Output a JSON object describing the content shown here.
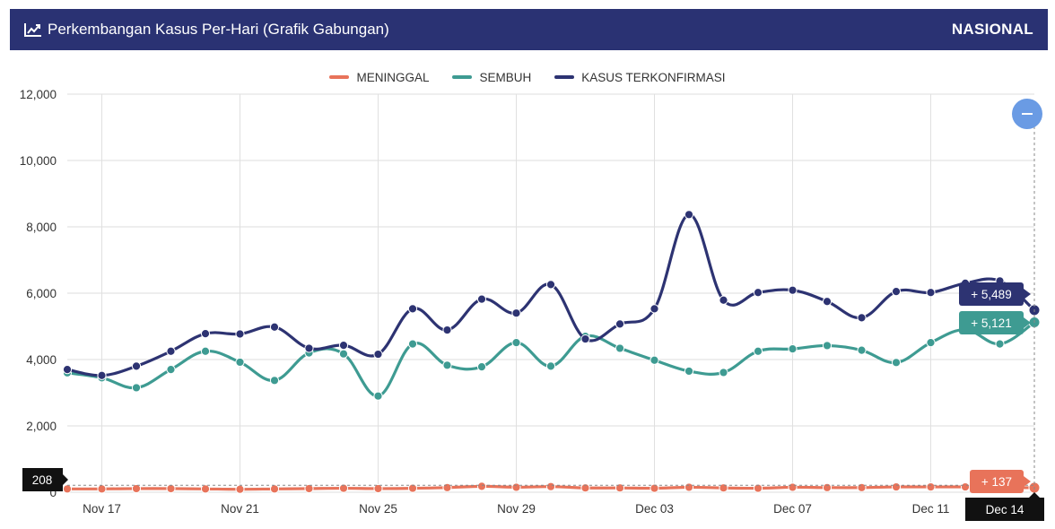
{
  "header": {
    "title": "Perkembangan Kasus Per-Hari (Grafik Gabungan)",
    "region": "NASIONAL",
    "icon": "trend-line-icon",
    "background": "#2a3273"
  },
  "zoom_button": {
    "icon": "minus-icon",
    "color": "#6a9be4"
  },
  "tooltips": {
    "confirmed": "+ 5,489",
    "recovered": "+ 5,121",
    "deaths": "+ 137",
    "crosshair_x": "Dec 14",
    "crosshair_y": "208"
  },
  "chart_data": {
    "type": "line",
    "x": [
      "Nov 16",
      "Nov 17",
      "Nov 18",
      "Nov 19",
      "Nov 20",
      "Nov 21",
      "Nov 22",
      "Nov 23",
      "Nov 24",
      "Nov 25",
      "Nov 26",
      "Nov 27",
      "Nov 28",
      "Nov 29",
      "Nov 30",
      "Dec 01",
      "Dec 02",
      "Dec 03",
      "Dec 04",
      "Dec 05",
      "Dec 06",
      "Dec 07",
      "Dec 08",
      "Dec 09",
      "Dec 10",
      "Dec 11",
      "Dec 12",
      "Dec 13",
      "Dec 14"
    ],
    "x_ticks": [
      "Nov 17",
      "Nov 21",
      "Nov 25",
      "Nov 29",
      "Dec 03",
      "Dec 07",
      "Dec 11"
    ],
    "y_ticks": [
      "0",
      "2,000",
      "4,000",
      "6,000",
      "8,000",
      "10,000",
      "12,000"
    ],
    "ylim": [
      0,
      12000
    ],
    "grid": true,
    "legend_position": "top-center",
    "series": [
      {
        "name": "MENINGGAL",
        "color": "#e8735a",
        "values": [
          100,
          100,
          110,
          110,
          100,
          90,
          100,
          110,
          120,
          110,
          120,
          140,
          180,
          150,
          170,
          130,
          130,
          120,
          150,
          130,
          120,
          150,
          140,
          140,
          160,
          160,
          160,
          140,
          137
        ]
      },
      {
        "name": "SEMBUH",
        "color": "#3e9b92",
        "values": [
          3600,
          3450,
          3150,
          3700,
          4250,
          3920,
          3370,
          4200,
          4170,
          2900,
          4470,
          3830,
          3780,
          4510,
          3800,
          4700,
          4340,
          3980,
          3650,
          3610,
          4250,
          4320,
          4420,
          4280,
          3910,
          4510,
          4900,
          4470,
          5121
        ]
      },
      {
        "name": "KASUS TERKONFIRMASI",
        "color": "#2d3372",
        "values": [
          3700,
          3520,
          3800,
          4250,
          4780,
          4770,
          4980,
          4340,
          4430,
          4160,
          5530,
          4890,
          5820,
          5400,
          6260,
          4620,
          5070,
          5530,
          8370,
          5790,
          6020,
          6090,
          5750,
          5260,
          6050,
          6020,
          6300,
          6370,
          5489
        ]
      }
    ]
  }
}
